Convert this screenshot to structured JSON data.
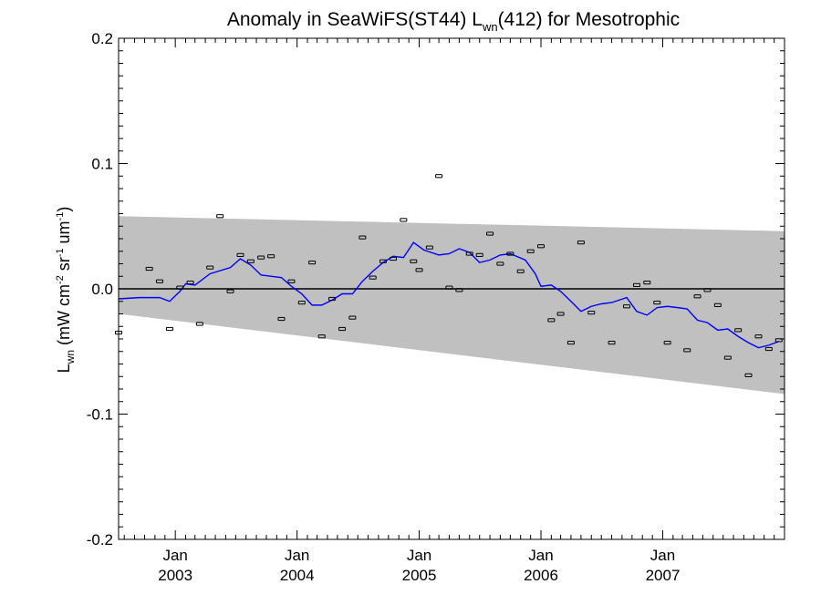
{
  "chart_data": {
    "type": "scatter",
    "title": "Anomaly in SeaWiFS(ST44) L",
    "title_sub": "wn",
    "title_suffix": "(412) for Mesotrophic",
    "ylabel": {
      "base": "L",
      "base_sub": "wn",
      "units_open": " (mW cm",
      "sup1": "-2",
      "mid1": " sr",
      "sup2": "-1",
      "mid2": " um",
      "sup3": "-1",
      "units_close": ")"
    },
    "xlabel": "",
    "xlim": [
      "2002-07-15",
      "2008-01-01"
    ],
    "ylim": [
      -0.2,
      0.2
    ],
    "grid": false,
    "legend": "none",
    "x_ticks": [
      {
        "date": "2003-01-01",
        "label_top": "Jan",
        "label_bottom": "2003"
      },
      {
        "date": "2004-01-01",
        "label_top": "Jan",
        "label_bottom": "2004"
      },
      {
        "date": "2005-01-01",
        "label_top": "Jan",
        "label_bottom": "2005"
      },
      {
        "date": "2006-01-01",
        "label_top": "Jan",
        "label_bottom": "2006"
      },
      {
        "date": "2007-01-01",
        "label_top": "Jan",
        "label_bottom": "2007"
      }
    ],
    "y_ticks": [
      {
        "value": 0.2,
        "label": "0.2"
      },
      {
        "value": 0.1,
        "label": "0.1"
      },
      {
        "value": 0.0,
        "label": "0.0"
      },
      {
        "value": -0.1,
        "label": "-0.1"
      },
      {
        "value": -0.2,
        "label": "-0.2"
      }
    ],
    "envelope": {
      "upper": [
        [
          "2002-07-15",
          0.058
        ],
        [
          "2008-01-01",
          0.046
        ]
      ],
      "lower": [
        [
          "2002-07-15",
          -0.02
        ],
        [
          "2008-01-01",
          -0.084
        ]
      ],
      "color": "#c0c0c0"
    },
    "zero_line": 0.0,
    "colors": {
      "points": "#000000",
      "running_mean": "#0000ff",
      "envelope": "#c0c0c0"
    },
    "series": [
      {
        "kind": "points",
        "points": [
          [
            "2002-07-15",
            -0.035
          ],
          [
            "2002-10-15",
            0.016
          ],
          [
            "2002-11-15",
            0.006
          ],
          [
            "2002-12-15",
            -0.032
          ],
          [
            "2003-01-15",
            0.001
          ],
          [
            "2003-02-15",
            0.005
          ],
          [
            "2003-03-15",
            -0.028
          ],
          [
            "2003-04-15",
            0.017
          ],
          [
            "2003-05-15",
            0.058
          ],
          [
            "2003-06-15",
            -0.002
          ],
          [
            "2003-07-15",
            0.027
          ],
          [
            "2003-08-15",
            0.022
          ],
          [
            "2003-09-15",
            0.025
          ],
          [
            "2003-10-15",
            0.026
          ],
          [
            "2003-11-15",
            -0.024
          ],
          [
            "2003-12-15",
            0.006
          ],
          [
            "2004-01-15",
            -0.011
          ],
          [
            "2004-02-15",
            0.021
          ],
          [
            "2004-03-15",
            -0.038
          ],
          [
            "2004-04-15",
            -0.008
          ],
          [
            "2004-05-15",
            -0.032
          ],
          [
            "2004-06-15",
            -0.023
          ],
          [
            "2004-07-15",
            0.041
          ],
          [
            "2004-08-15",
            0.009
          ],
          [
            "2004-09-15",
            0.022
          ],
          [
            "2004-10-15",
            0.024
          ],
          [
            "2004-11-15",
            0.055
          ],
          [
            "2004-12-15",
            0.022
          ],
          [
            "2005-01-01",
            0.015
          ],
          [
            "2005-02-01",
            0.033
          ],
          [
            "2005-03-01",
            0.09
          ],
          [
            "2005-04-01",
            0.001
          ],
          [
            "2005-05-01",
            -0.001
          ],
          [
            "2005-06-01",
            0.028
          ],
          [
            "2005-07-01",
            0.027
          ],
          [
            "2005-08-01",
            0.044
          ],
          [
            "2005-09-01",
            0.02
          ],
          [
            "2005-10-01",
            0.028
          ],
          [
            "2005-11-01",
            0.014
          ],
          [
            "2005-12-01",
            0.03
          ],
          [
            "2006-01-01",
            0.034
          ],
          [
            "2006-02-01",
            -0.025
          ],
          [
            "2006-03-01",
            -0.02
          ],
          [
            "2006-04-01",
            -0.043
          ],
          [
            "2006-05-01",
            0.037
          ],
          [
            "2006-06-01",
            -0.019
          ],
          [
            "2006-08-01",
            -0.043
          ],
          [
            "2006-09-15",
            -0.014
          ],
          [
            "2006-10-15",
            0.003
          ],
          [
            "2006-11-15",
            0.005
          ],
          [
            "2006-12-15",
            -0.011
          ],
          [
            "2007-01-15",
            -0.043
          ],
          [
            "2007-03-15",
            -0.049
          ],
          [
            "2007-04-15",
            -0.006
          ],
          [
            "2007-05-15",
            -0.001
          ],
          [
            "2007-06-15",
            -0.013
          ],
          [
            "2007-07-15",
            -0.055
          ],
          [
            "2007-08-15",
            -0.033
          ],
          [
            "2007-09-15",
            -0.069
          ],
          [
            "2007-10-15",
            -0.038
          ],
          [
            "2007-11-15",
            -0.048
          ],
          [
            "2007-12-15",
            -0.041
          ]
        ]
      },
      {
        "kind": "line",
        "points": [
          [
            "2002-07-15",
            -0.008
          ],
          [
            "2002-09-15",
            -0.007
          ],
          [
            "2002-11-15",
            -0.007
          ],
          [
            "2002-12-15",
            -0.01
          ],
          [
            "2003-01-15",
            -0.002
          ],
          [
            "2003-02-01",
            0.004
          ],
          [
            "2003-03-01",
            0.003
          ],
          [
            "2003-04-15",
            0.012
          ],
          [
            "2003-06-15",
            0.017
          ],
          [
            "2003-07-15",
            0.024
          ],
          [
            "2003-08-15",
            0.019
          ],
          [
            "2003-09-15",
            0.011
          ],
          [
            "2003-11-15",
            0.009
          ],
          [
            "2003-12-15",
            0.002
          ],
          [
            "2004-01-15",
            -0.004
          ],
          [
            "2004-02-15",
            -0.013
          ],
          [
            "2004-03-15",
            -0.013
          ],
          [
            "2004-04-15",
            -0.009
          ],
          [
            "2004-05-15",
            -0.004
          ],
          [
            "2004-06-15",
            -0.004
          ],
          [
            "2004-07-15",
            0.006
          ],
          [
            "2004-08-15",
            0.014
          ],
          [
            "2004-09-15",
            0.021
          ],
          [
            "2004-10-15",
            0.026
          ],
          [
            "2004-11-15",
            0.025
          ],
          [
            "2004-12-15",
            0.037
          ],
          [
            "2005-01-15",
            0.031
          ],
          [
            "2005-03-01",
            0.027
          ],
          [
            "2005-04-01",
            0.028
          ],
          [
            "2005-05-01",
            0.032
          ],
          [
            "2005-06-01",
            0.029
          ],
          [
            "2005-07-01",
            0.021
          ],
          [
            "2005-08-01",
            0.023
          ],
          [
            "2005-09-01",
            0.027
          ],
          [
            "2005-10-01",
            0.028
          ],
          [
            "2005-11-15",
            0.023
          ],
          [
            "2005-12-15",
            0.012
          ],
          [
            "2006-01-01",
            0.002
          ],
          [
            "2006-02-01",
            0.003
          ],
          [
            "2006-03-01",
            -0.002
          ],
          [
            "2006-04-01",
            -0.01
          ],
          [
            "2006-05-01",
            -0.018
          ],
          [
            "2006-06-01",
            -0.014
          ],
          [
            "2006-07-01",
            -0.012
          ],
          [
            "2006-08-01",
            -0.011
          ],
          [
            "2006-09-15",
            -0.007
          ],
          [
            "2006-10-15",
            -0.018
          ],
          [
            "2006-11-15",
            -0.021
          ],
          [
            "2006-12-15",
            -0.015
          ],
          [
            "2007-01-15",
            -0.014
          ],
          [
            "2007-02-15",
            -0.015
          ],
          [
            "2007-03-15",
            -0.016
          ],
          [
            "2007-04-15",
            -0.025
          ],
          [
            "2007-05-15",
            -0.027
          ],
          [
            "2007-06-15",
            -0.033
          ],
          [
            "2007-07-15",
            -0.032
          ],
          [
            "2007-08-15",
            -0.038
          ],
          [
            "2007-09-15",
            -0.043
          ],
          [
            "2007-10-15",
            -0.047
          ],
          [
            "2007-11-15",
            -0.045
          ],
          [
            "2007-12-15",
            -0.042
          ]
        ]
      }
    ]
  }
}
